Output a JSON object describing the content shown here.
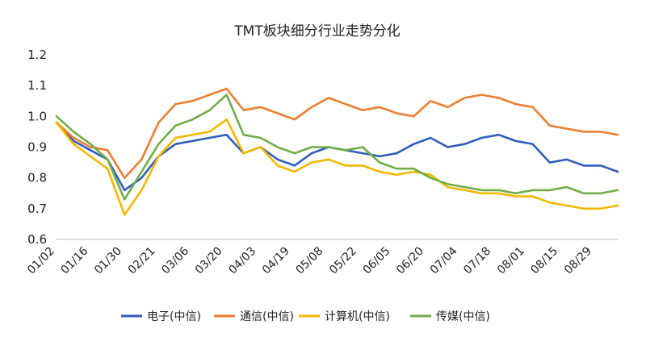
{
  "chart_data": {
    "type": "line",
    "title": "TMT板块细分行业走势分化",
    "xlabel": "",
    "ylabel": "",
    "ylim": [
      0.6,
      1.2
    ],
    "y_ticks": [
      "0.6",
      "0.7",
      "0.8",
      "0.9",
      "1.0",
      "1.1",
      "1.2"
    ],
    "x_ticks": [
      "01/02",
      "01/16",
      "01/30",
      "02/21",
      "03/06",
      "03/20",
      "04/03",
      "04/19",
      "05/08",
      "05/22",
      "06/05",
      "06/20",
      "07/04",
      "07/18",
      "08/01",
      "08/15",
      "08/29"
    ],
    "grid": false,
    "legend_position": "bottom",
    "x": [
      "01/02",
      "01/09",
      "01/16",
      "01/23",
      "01/30",
      "02/07",
      "02/21",
      "02/28",
      "03/06",
      "03/13",
      "03/20",
      "03/27",
      "04/03",
      "04/10",
      "04/19",
      "04/26",
      "05/08",
      "05/15",
      "05/22",
      "05/29",
      "06/05",
      "06/12",
      "06/20",
      "06/27",
      "07/04",
      "07/11",
      "07/18",
      "07/25",
      "08/01",
      "08/08",
      "08/15",
      "08/22",
      "08/29",
      "09/06"
    ],
    "series": [
      {
        "name": "电子(中信)",
        "color": "#2E5DBE",
        "values": [
          0.98,
          0.92,
          0.89,
          0.86,
          0.76,
          0.8,
          0.87,
          0.91,
          0.92,
          0.93,
          0.94,
          0.88,
          0.9,
          0.86,
          0.84,
          0.88,
          0.9,
          0.89,
          0.88,
          0.87,
          0.88,
          0.91,
          0.93,
          0.9,
          0.91,
          0.93,
          0.94,
          0.92,
          0.91,
          0.85,
          0.86,
          0.84,
          0.84,
          0.82
        ]
      },
      {
        "name": "通信(中信)",
        "color": "#ED7D31",
        "values": [
          0.98,
          0.93,
          0.9,
          0.89,
          0.8,
          0.86,
          0.98,
          1.04,
          1.05,
          1.07,
          1.09,
          1.02,
          1.03,
          1.01,
          0.99,
          1.03,
          1.06,
          1.04,
          1.02,
          1.03,
          1.01,
          1.0,
          1.05,
          1.03,
          1.06,
          1.07,
          1.06,
          1.04,
          1.03,
          0.97,
          0.96,
          0.95,
          0.95,
          0.94
        ]
      },
      {
        "name": "计算机(中信)",
        "color": "#F2B800",
        "values": [
          0.98,
          0.91,
          0.87,
          0.83,
          0.68,
          0.76,
          0.87,
          0.93,
          0.94,
          0.95,
          0.99,
          0.88,
          0.9,
          0.84,
          0.82,
          0.85,
          0.86,
          0.84,
          0.84,
          0.82,
          0.81,
          0.82,
          0.81,
          0.77,
          0.76,
          0.75,
          0.75,
          0.74,
          0.74,
          0.72,
          0.71,
          0.7,
          0.7,
          0.71
        ]
      },
      {
        "name": "传媒(中信)",
        "color": "#70AD47",
        "values": [
          1.0,
          0.95,
          0.91,
          0.86,
          0.73,
          0.82,
          0.91,
          0.97,
          0.99,
          1.02,
          1.07,
          0.94,
          0.93,
          0.9,
          0.88,
          0.9,
          0.9,
          0.89,
          0.9,
          0.85,
          0.83,
          0.83,
          0.8,
          0.78,
          0.77,
          0.76,
          0.76,
          0.75,
          0.76,
          0.76,
          0.77,
          0.75,
          0.75,
          0.76
        ]
      }
    ]
  }
}
